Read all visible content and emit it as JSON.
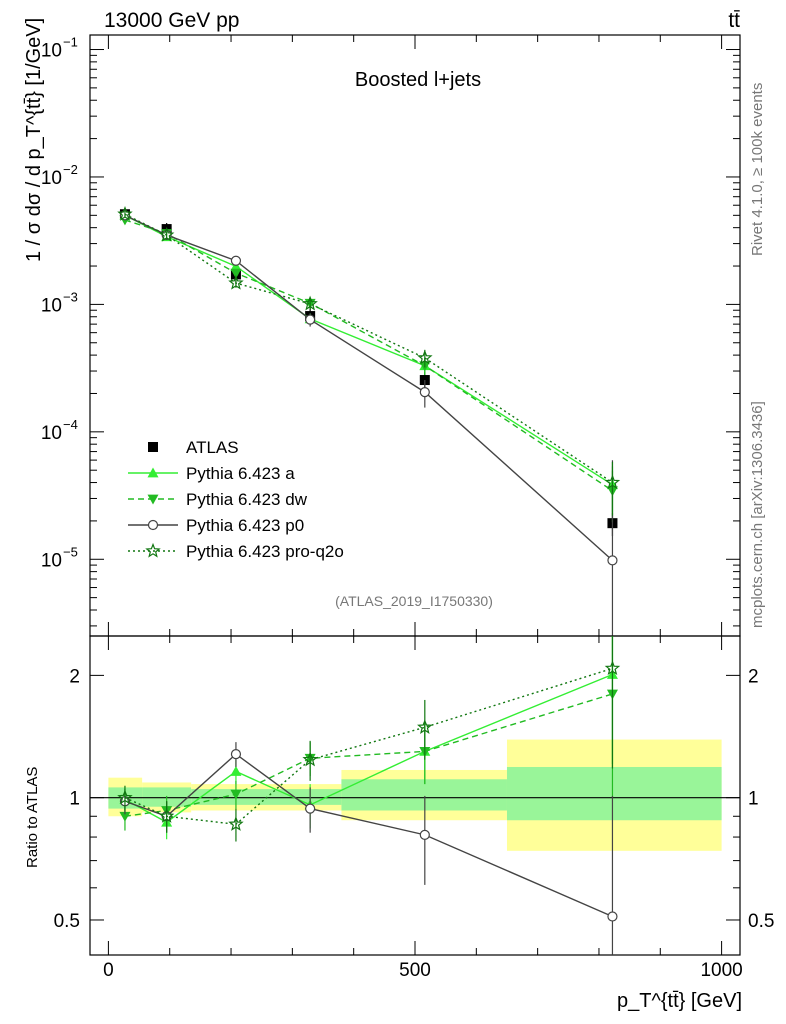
{
  "header": {
    "left": "13000 GeV pp",
    "right": "tt̄"
  },
  "side_labels": {
    "rivet": "Rivet 4.1.0, ≥ 100k events",
    "mcplots": "mcplots.cern.ch [arXiv:1306.3436]"
  },
  "chart_data": [
    {
      "type": "line",
      "scale": "log",
      "title": "Boosted l+jets",
      "watermark": "(ATLAS_2019_I1750330)",
      "ylabel": "1 / σ dσ / d p_T^{tt̄} [1/GeV]",
      "xlabel": "p_T^{tt̄} [GeV]",
      "xlim": [
        -30,
        1030
      ],
      "ylim": [
        2.5e-06,
        0.13
      ],
      "x_ticks": [
        "0",
        "500",
        "1000"
      ],
      "y_ticks": [
        {
          "value": 1e-05,
          "base": "10",
          "exp": "−5"
        },
        {
          "value": 0.0001,
          "base": "10",
          "exp": "−4"
        },
        {
          "value": 0.001,
          "base": "10",
          "exp": "−3"
        },
        {
          "value": 0.01,
          "base": "10",
          "exp": "−2"
        },
        {
          "value": 0.1,
          "base": "10",
          "exp": "−1"
        }
      ],
      "x": [
        27,
        95,
        208,
        329,
        516,
        822
      ],
      "series": [
        {
          "name": "ATLAS",
          "style": "data",
          "color": "#000000",
          "values": [
            0.0051,
            0.0039,
            0.00172,
            0.00081,
            0.000255,
            1.92e-05
          ],
          "err_lo": [
            0.00055,
            0.00045,
            0.00022,
            0.00012,
            4e-05,
            4e-06
          ],
          "err_hi": [
            0.00055,
            0.00045,
            0.00022,
            0.00012,
            4e-05,
            4e-06
          ]
        },
        {
          "name": "Pythia 6.423 a",
          "style": "solid",
          "marker": "triangle-up",
          "color": "#33ee33",
          "values": [
            0.005,
            0.0034,
            0.00199,
            0.00077,
            0.00033,
            3.85e-05
          ],
          "err_lo": [
            0.0003,
            0.00025,
            0.00013,
            8e-05,
            5e-05,
            1.5e-05
          ],
          "err_hi": [
            0.0003,
            0.00025,
            0.00013,
            8e-05,
            5e-05,
            1.5e-05
          ]
        },
        {
          "name": "Pythia 6.423 dw",
          "style": "dashed",
          "marker": "triangle-down",
          "color": "#22bb22",
          "values": [
            0.0046,
            0.0036,
            0.00176,
            0.00102,
            0.00033,
            3.45e-05
          ],
          "err_lo": [
            0.0003,
            0.00025,
            0.00013,
            0.0001,
            5e-05,
            1.5e-05
          ],
          "err_hi": [
            0.0003,
            0.00025,
            0.00013,
            0.0001,
            5e-05,
            1.5e-05
          ]
        },
        {
          "name": "Pythia 6.423 p0",
          "style": "solid",
          "marker": "circle-open",
          "color": "#444444",
          "values": [
            0.005,
            0.0035,
            0.0022,
            0.00076,
            0.000205,
            9.8e-06
          ],
          "err_lo": [
            0.0003,
            0.00025,
            0.00015,
            9e-05,
            5e-05,
            9.7e-06
          ],
          "err_hi": [
            0.0003,
            0.00025,
            0.00015,
            9e-05,
            5e-05,
            5e-05
          ]
        },
        {
          "name": "Pythia 6.423 pro-q2o",
          "style": "dotted",
          "marker": "star-open",
          "color": "#117711",
          "values": [
            0.0051,
            0.0035,
            0.00147,
            0.00101,
            0.00038,
            4e-05
          ],
          "err_lo": [
            0.0003,
            0.00025,
            0.00012,
            0.0001,
            6e-05,
            1.8e-05
          ],
          "err_hi": [
            0.0003,
            0.00025,
            0.00012,
            0.0001,
            6e-05,
            1.8e-05
          ]
        }
      ],
      "legend": {
        "position": "center-left",
        "entries": [
          "ATLAS",
          "Pythia 6.423 a",
          "Pythia 6.423 dw",
          "Pythia 6.423 p0",
          "Pythia 6.423 pro-q2o"
        ]
      }
    },
    {
      "type": "line",
      "scale": "log",
      "title": "",
      "ylabel": "Ratio to ATLAS",
      "xlim": [
        -30,
        1030
      ],
      "ylim": [
        0.41,
        2.5
      ],
      "y_ticks": [
        "0.5",
        "1",
        "2"
      ],
      "y_tick_values": [
        0.5,
        1,
        2
      ],
      "bands": {
        "bins": [
          [
            0,
            55
          ],
          [
            55,
            135
          ],
          [
            135,
            380
          ],
          [
            380,
            650
          ],
          [
            650,
            1000
          ]
        ],
        "inner": [
          [
            0.94,
            1.06
          ],
          [
            0.95,
            1.06
          ],
          [
            0.96,
            1.05
          ],
          [
            0.93,
            1.11
          ],
          [
            0.88,
            1.19
          ]
        ],
        "outer": [
          [
            0.9,
            1.12
          ],
          [
            0.92,
            1.09
          ],
          [
            0.93,
            1.08
          ],
          [
            0.88,
            1.17
          ],
          [
            0.74,
            1.39
          ]
        ]
      },
      "x": [
        27,
        95,
        208,
        329,
        516,
        822
      ],
      "series": [
        {
          "name": "Pythia 6.423 a",
          "style": "solid",
          "marker": "triangle-up",
          "color": "#33ee33",
          "values": [
            0.99,
            0.87,
            1.16,
            0.96,
            1.3,
            2.01
          ],
          "err": [
            0.07,
            0.08,
            0.08,
            0.12,
            0.22,
            0.8
          ]
        },
        {
          "name": "Pythia 6.423 dw",
          "style": "dashed",
          "marker": "triangle-down",
          "color": "#22bb22",
          "values": [
            0.9,
            0.93,
            1.02,
            1.25,
            1.3,
            1.8
          ],
          "err": [
            0.07,
            0.08,
            0.08,
            0.12,
            0.22,
            0.8
          ]
        },
        {
          "name": "Pythia 6.423 p0",
          "style": "solid",
          "marker": "circle-open",
          "color": "#444444",
          "values": [
            0.98,
            0.9,
            1.28,
            0.94,
            0.81,
            0.51
          ],
          "err": [
            0.07,
            0.08,
            0.09,
            0.12,
            0.2,
            0.5
          ]
        },
        {
          "name": "Pythia 6.423 pro-q2o",
          "style": "dotted",
          "marker": "star-open",
          "color": "#117711",
          "values": [
            1.0,
            0.9,
            0.86,
            1.24,
            1.49,
            2.08
          ],
          "err": [
            0.07,
            0.08,
            0.08,
            0.14,
            0.25,
            0.9
          ]
        }
      ]
    }
  ]
}
